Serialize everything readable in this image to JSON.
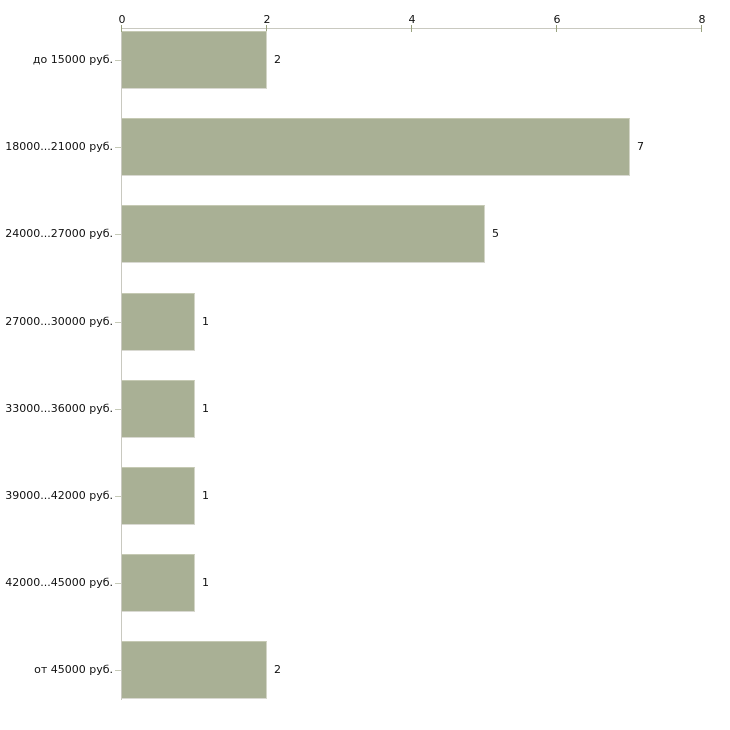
{
  "chart_data": {
    "type": "bar",
    "orientation": "horizontal",
    "title": "",
    "xlabel": "",
    "ylabel": "",
    "categories": [
      "до 15000 руб.",
      "18000...21000 руб.",
      "24000...27000 руб.",
      "27000...30000 руб.",
      "33000...36000 руб.",
      "39000...42000 руб.",
      "42000...45000 руб.",
      "от 45000 руб."
    ],
    "values": [
      2,
      7,
      5,
      1,
      1,
      1,
      1,
      2
    ],
    "value_labels": [
      "2",
      "7",
      "5",
      "1",
      "1",
      "1",
      "1",
      "2"
    ],
    "x_axis": {
      "position": "top",
      "ticks": [
        0,
        2,
        4,
        6,
        8
      ],
      "tick_labels": [
        "0",
        "2",
        "4",
        "6",
        "8"
      ],
      "range": [
        0,
        8
      ]
    },
    "grid": false,
    "legend": false
  },
  "style": {
    "background": "#ffffff",
    "bar_color": "#a9b095",
    "bar_top_edge": "#c5c9b3",
    "bar_bottom_edge": "#d9d9d2",
    "bar_right_edge": "#d3d5c7",
    "axis_line_color": "#c9c9c0",
    "tick_color": "#99a27f",
    "category_tick_color": "#c6cab8",
    "text_color": "#111111"
  }
}
